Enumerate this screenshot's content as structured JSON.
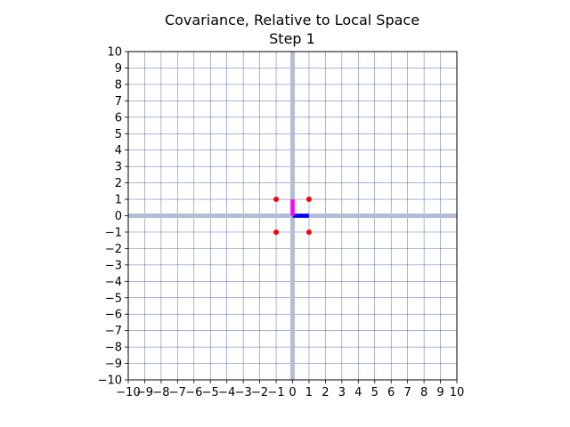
{
  "chart_data": {
    "type": "scatter",
    "title": "Covariance, Relative to Local Space",
    "subtitle": "Step 1",
    "xlim": [
      -10,
      10
    ],
    "ylim": [
      -10,
      10
    ],
    "grid": true,
    "x_ticks": [
      -10,
      -9,
      -8,
      -7,
      -6,
      -5,
      -4,
      -3,
      -2,
      -1,
      0,
      1,
      2,
      3,
      4,
      5,
      6,
      7,
      8,
      9,
      10
    ],
    "y_ticks": [
      -10,
      -9,
      -8,
      -7,
      -6,
      -5,
      -4,
      -3,
      -2,
      -1,
      0,
      1,
      2,
      3,
      4,
      5,
      6,
      7,
      8,
      9,
      10
    ],
    "points": [
      {
        "x": -1,
        "y": 1
      },
      {
        "x": 1,
        "y": 1
      },
      {
        "x": -1,
        "y": -1
      },
      {
        "x": 1,
        "y": -1
      }
    ],
    "basis_vectors": [
      {
        "from": [
          0,
          0
        ],
        "to": [
          1,
          0
        ],
        "color": "#0000ff"
      },
      {
        "from": [
          0,
          0
        ],
        "to": [
          0,
          1
        ],
        "color": "#ff00ff"
      }
    ],
    "colors": {
      "points": "#ff0000",
      "grid": "#1f3a93",
      "axis_lines": "#b3bdd4",
      "frame": "#000000"
    }
  }
}
